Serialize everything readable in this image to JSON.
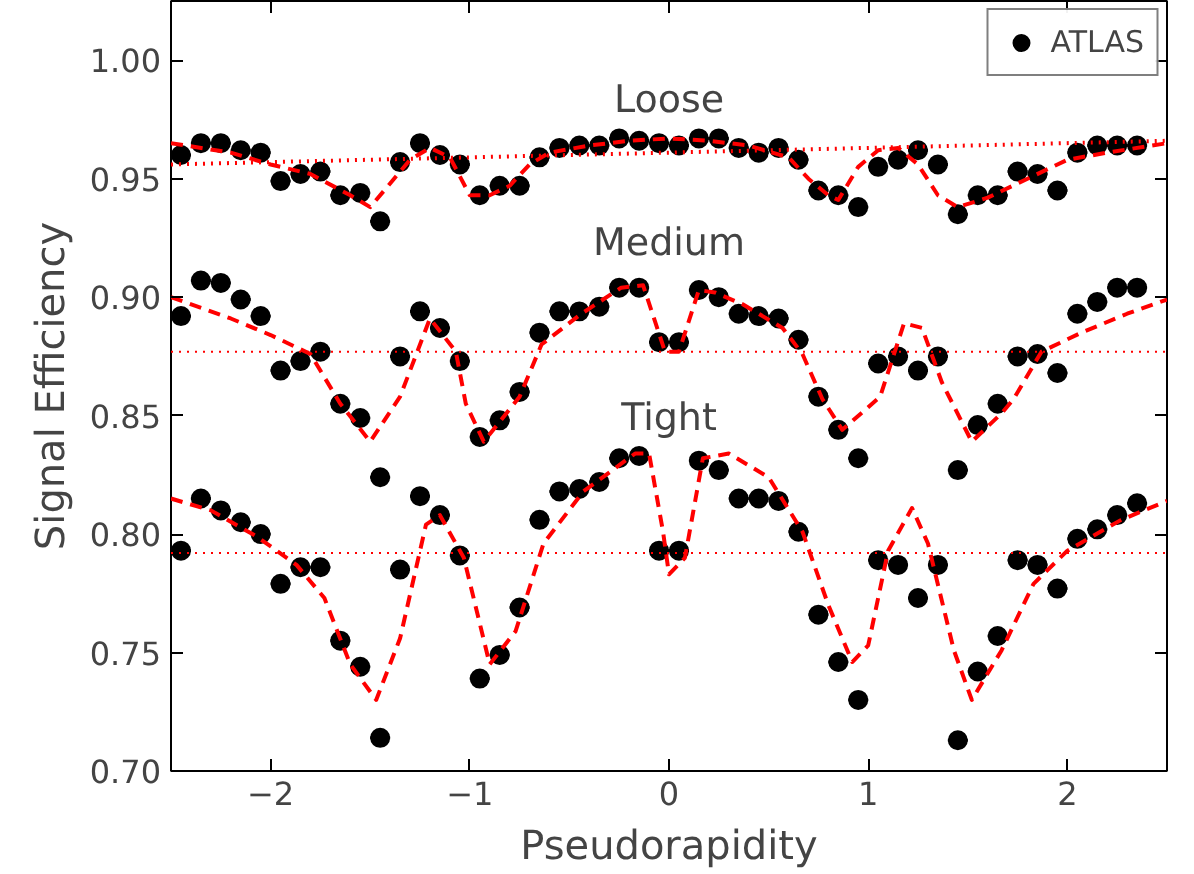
{
  "chart_data": {
    "type": "scatter",
    "xlabel": "Pseudorapidity",
    "ylabel": "Signal Efficiency",
    "xlim": [
      -2.5,
      2.5
    ],
    "ylim": [
      0.7,
      1.025
    ],
    "xticks": [
      {
        "value": -2,
        "label": "−2"
      },
      {
        "value": -1,
        "label": "−1"
      },
      0,
      1,
      2
    ],
    "yticks": [
      {
        "value": 0.7,
        "label": "0.70"
      },
      {
        "value": 0.75,
        "label": "0.75"
      },
      {
        "value": 0.8,
        "label": "0.80"
      },
      {
        "value": 0.85,
        "label": "0.85"
      },
      {
        "value": 0.9,
        "label": "0.90"
      },
      {
        "value": 0.95,
        "label": "0.95"
      },
      {
        "value": 1.0,
        "label": "1.00"
      }
    ],
    "grid": false,
    "legend": "top right",
    "marker": "circle",
    "x": [
      -2.45,
      -2.35,
      -2.25,
      -2.15,
      -2.05,
      -1.95,
      -1.85,
      -1.75,
      -1.65,
      -1.55,
      -1.45,
      -1.35,
      -1.25,
      -1.15,
      -1.05,
      -0.95,
      -0.85,
      -0.75,
      -0.65,
      -0.55,
      -0.45,
      -0.35,
      -0.25,
      -0.15,
      -0.05,
      0.05,
      0.15,
      0.25,
      0.35,
      0.45,
      0.55,
      0.65,
      0.75,
      0.85,
      0.95,
      1.05,
      1.15,
      1.25,
      1.35,
      1.45,
      1.55,
      1.65,
      1.75,
      1.85,
      1.95,
      2.05,
      2.15,
      2.25,
      2.35
    ],
    "series": [
      {
        "name": "ATLAS",
        "color": "#000000",
        "values": [
          0.96,
          0.965,
          0.965,
          0.962,
          0.961,
          0.949,
          0.952,
          0.953,
          0.943,
          0.944,
          0.932,
          0.957,
          0.965,
          0.96,
          0.956,
          0.943,
          0.947,
          0.947,
          0.959,
          0.963,
          0.964,
          0.964,
          0.967,
          0.966,
          0.965,
          0.964,
          0.967,
          0.967,
          0.963,
          0.961,
          0.963,
          0.958,
          0.945,
          0.943,
          0.938,
          0.955,
          0.958,
          0.962,
          0.956,
          0.935,
          0.943,
          0.943,
          0.953,
          0.952,
          0.945,
          0.961,
          0.964,
          0.964,
          0.964
        ],
        "xerrors": [
          0.05,
          0.05,
          0.05,
          0.05,
          0.05,
          0.05,
          0.05,
          0.05,
          0.05,
          0.05,
          0.05,
          0.05,
          0.05,
          0.05,
          0.05,
          0.05,
          0.05,
          0.05,
          0.05,
          0.05,
          0.05,
          0.05,
          0.05,
          0.05,
          0.05,
          0.05,
          0.05,
          0.05,
          0.05,
          0.05,
          0.05,
          0.05,
          0.05,
          0.05,
          0.05,
          0.05,
          0.05,
          0.05,
          0.05,
          0.05,
          0.05,
          0.05,
          0.05,
          0.05,
          0.05,
          0.05,
          0.05,
          0.05,
          0.05
        ]
      },
      {
        "color": "#000000",
        "values": [
          0.892,
          0.907,
          0.906,
          0.899,
          0.892,
          0.869,
          0.873,
          0.877,
          0.855,
          0.849,
          0.824,
          0.875,
          0.894,
          0.887,
          0.873,
          0.841,
          0.848,
          0.86,
          0.885,
          0.894,
          0.894,
          0.896,
          0.904,
          0.904,
          0.881,
          0.881,
          0.903,
          0.9,
          0.893,
          0.892,
          0.891,
          0.882,
          0.858,
          0.844,
          0.832,
          0.872,
          0.875,
          0.869,
          0.875,
          0.827,
          0.846,
          0.855,
          0.875,
          0.876,
          0.868,
          0.893,
          0.898,
          0.904,
          0.904
        ],
        "xerrors": [
          0.05,
          0.05,
          0.05,
          0.05,
          0.05,
          0.05,
          0.05,
          0.05,
          0.05,
          0.05,
          0.05,
          0.05,
          0.05,
          0.05,
          0.05,
          0.05,
          0.05,
          0.05,
          0.05,
          0.05,
          0.05,
          0.05,
          0.05,
          0.05,
          0.05,
          0.05,
          0.05,
          0.05,
          0.05,
          0.05,
          0.05,
          0.05,
          0.05,
          0.05,
          0.05,
          0.05,
          0.05,
          0.05,
          0.05,
          0.05,
          0.05,
          0.05,
          0.05,
          0.05,
          0.05,
          0.05,
          0.05,
          0.05,
          0.05
        ]
      },
      {
        "color": "#000000",
        "values": [
          0.793,
          0.815,
          0.81,
          0.805,
          0.8,
          0.779,
          0.786,
          0.786,
          0.755,
          0.744,
          0.714,
          0.785,
          0.816,
          0.808,
          0.791,
          0.739,
          0.749,
          0.769,
          0.806,
          0.818,
          0.819,
          0.822,
          0.832,
          0.833,
          0.793,
          0.793,
          0.831,
          0.827,
          0.815,
          0.815,
          0.814,
          0.801,
          0.766,
          0.746,
          0.73,
          0.789,
          0.787,
          0.773,
          0.787,
          0.713,
          0.742,
          0.757,
          0.789,
          0.787,
          0.777,
          0.798,
          0.802,
          0.808,
          0.813
        ],
        "xerrors": [
          0.05,
          0.05,
          0.05,
          0.05,
          0.05,
          0.05,
          0.05,
          0.05,
          0.05,
          0.05,
          0.05,
          0.05,
          0.05,
          0.05,
          0.05,
          0.05,
          0.05,
          0.05,
          0.05,
          0.05,
          0.05,
          0.05,
          0.05,
          0.05,
          0.05,
          0.05,
          0.05,
          0.05,
          0.05,
          0.05,
          0.05,
          0.05,
          0.05,
          0.05,
          0.05,
          0.05,
          0.05,
          0.05,
          0.05,
          0.05,
          0.05,
          0.05,
          0.05,
          0.05,
          0.05,
          0.05,
          0.05,
          0.05,
          0.05
        ]
      },
      {
        "type": "line",
        "marker": "none",
        "color": "#ff0000",
        "line_style": "dashed",
        "x": [
          -2.5,
          -2.2,
          -2.0,
          -1.8,
          -1.6,
          -1.5,
          -1.4,
          -1.3,
          -1.2,
          -1.1,
          -1.0,
          -0.9,
          -0.8,
          -0.7,
          -0.6,
          -0.4,
          -0.2,
          0.0,
          0.2,
          0.4,
          0.6,
          0.7,
          0.8,
          0.85,
          0.95,
          1.05,
          1.15,
          1.25,
          1.35,
          1.45,
          1.6,
          1.8,
          2.0,
          2.2,
          2.5
        ],
        "values": [
          0.965,
          0.961,
          0.956,
          0.952,
          0.943,
          0.938,
          0.948,
          0.958,
          0.963,
          0.959,
          0.943,
          0.943,
          0.947,
          0.956,
          0.961,
          0.964,
          0.966,
          0.967,
          0.966,
          0.964,
          0.959,
          0.95,
          0.943,
          0.941,
          0.955,
          0.962,
          0.963,
          0.956,
          0.943,
          0.938,
          0.942,
          0.95,
          0.958,
          0.961,
          0.965
        ]
      },
      {
        "type": "line",
        "marker": "none",
        "color": "#ff0000",
        "line_style": "dashed",
        "x": [
          -2.5,
          -2.2,
          -2.0,
          -1.8,
          -1.65,
          -1.5,
          -1.35,
          -1.2,
          -1.07,
          -1.02,
          -0.93,
          -0.75,
          -0.64,
          -0.44,
          -0.24,
          -0.13,
          -0.02,
          0.05,
          0.15,
          0.23,
          0.37,
          0.57,
          0.67,
          0.77,
          0.87,
          1.06,
          1.18,
          1.27,
          1.37,
          1.52,
          1.67,
          1.73,
          1.87,
          2.07,
          2.3,
          2.5
        ],
        "values": [
          0.9,
          0.891,
          0.884,
          0.876,
          0.855,
          0.839,
          0.858,
          0.891,
          0.877,
          0.855,
          0.839,
          0.858,
          0.88,
          0.893,
          0.904,
          0.905,
          0.877,
          0.877,
          0.903,
          0.902,
          0.897,
          0.887,
          0.876,
          0.857,
          0.844,
          0.858,
          0.889,
          0.887,
          0.864,
          0.839,
          0.851,
          0.857,
          0.877,
          0.885,
          0.893,
          0.899
        ]
      },
      {
        "type": "line",
        "marker": "none",
        "color": "#ff0000",
        "line_style": "dashed",
        "x": [
          -2.5,
          -2.3,
          -2.07,
          -1.87,
          -1.73,
          -1.6,
          -1.47,
          -1.35,
          -1.22,
          -1.15,
          -1.03,
          -0.9,
          -0.77,
          -0.63,
          -0.43,
          -0.17,
          -0.1,
          -0.03,
          0.0,
          0.08,
          0.17,
          0.3,
          0.5,
          0.67,
          0.8,
          0.92,
          1.0,
          1.1,
          1.22,
          1.3,
          1.43,
          1.52,
          1.67,
          1.83,
          2.0,
          2.27,
          2.5
        ],
        "values": [
          0.815,
          0.81,
          0.799,
          0.787,
          0.773,
          0.745,
          0.73,
          0.756,
          0.804,
          0.808,
          0.79,
          0.745,
          0.759,
          0.796,
          0.818,
          0.834,
          0.834,
          0.801,
          0.783,
          0.79,
          0.832,
          0.834,
          0.824,
          0.801,
          0.77,
          0.746,
          0.753,
          0.793,
          0.811,
          0.796,
          0.751,
          0.73,
          0.751,
          0.779,
          0.793,
          0.806,
          0.814
        ]
      },
      {
        "type": "line",
        "marker": "none",
        "color": "#ff0000",
        "line_style": "dotted",
        "x": [
          -2.5,
          2.5
        ],
        "values": [
          0.956,
          0.966
        ]
      }
    ],
    "ref_lines": [
      {
        "axis": "y",
        "value": 0.877,
        "color": "#ff0000",
        "line_style": "dotted"
      },
      {
        "axis": "y",
        "value": 0.792,
        "color": "#ff0000",
        "line_style": "dotted"
      }
    ],
    "annotations": [
      "Loose",
      "Medium",
      "Tight"
    ]
  }
}
